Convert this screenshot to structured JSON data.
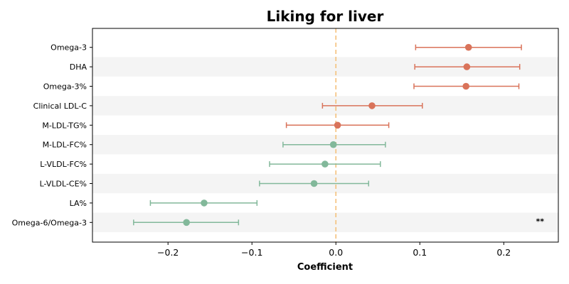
{
  "chart_data": {
    "type": "forest",
    "title": "Liking for liver",
    "xlabel": "Coefficient",
    "xlim": [
      -0.29,
      0.265
    ],
    "xticks": [
      -0.2,
      -0.1,
      0.0,
      0.1,
      0.2
    ],
    "xtick_labels": [
      "−0.2",
      "−0.1",
      "0.0",
      "0.1",
      "0.2"
    ],
    "reference_line": 0.0,
    "categories": [
      "Omega-3",
      "DHA",
      "Omega-3%",
      "Clinical LDL-C",
      "M-LDL-TG%",
      "M-LDL-FC%",
      "L-VLDL-FC%",
      "L-VLDL-CE%",
      "LA%",
      "Omega-6/Omega-3"
    ],
    "estimates": [
      0.158,
      0.156,
      0.155,
      0.043,
      0.002,
      -0.003,
      -0.013,
      -0.026,
      -0.157,
      -0.178
    ],
    "ci_lower": [
      0.095,
      0.094,
      0.093,
      -0.016,
      -0.059,
      -0.063,
      -0.079,
      -0.091,
      -0.221,
      -0.241
    ],
    "ci_upper": [
      0.221,
      0.219,
      0.218,
      0.103,
      0.063,
      0.059,
      0.053,
      0.039,
      -0.094,
      -0.116
    ],
    "annotations": [
      "",
      "",
      "",
      "",
      "",
      "",
      "",
      "",
      "",
      "**"
    ],
    "colors": {
      "positive": "#d9735a",
      "negative": "#82b89a",
      "reference": "#f5c07a",
      "band": "#f4f4f4"
    }
  }
}
